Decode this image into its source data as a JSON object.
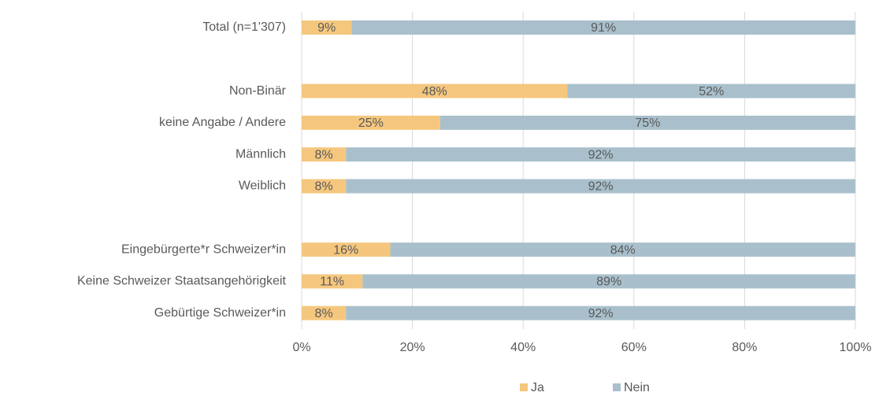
{
  "chart_data": {
    "type": "bar",
    "orientation": "horizontal",
    "stacked": true,
    "categories": [
      "Total (n=1'307)",
      null,
      "Non-Binär",
      "keine Angabe / Andere",
      "Männlich",
      "Weiblich",
      null,
      "Eingebürgerte*r Schweizer*in",
      "Keine Schweizer Staatsangehörigkeit",
      "Gebürtige Schweizer*in"
    ],
    "series": [
      {
        "name": "Ja",
        "color": "#f5c77e",
        "values": [
          9,
          null,
          48,
          25,
          8,
          8,
          null,
          16,
          11,
          8
        ],
        "value_labels": [
          "9%",
          null,
          "48%",
          "25%",
          "8%",
          "8%",
          null,
          "16%",
          "11%",
          "8%"
        ]
      },
      {
        "name": "Nein",
        "color": "#a9c0cc",
        "values": [
          91,
          null,
          52,
          75,
          92,
          92,
          null,
          84,
          89,
          92
        ],
        "value_labels": [
          "91%",
          null,
          "52%",
          "75%",
          "92%",
          "92%",
          null,
          "84%",
          "89%",
          "92%"
        ]
      }
    ],
    "xlim": [
      0,
      100
    ],
    "xticks": [
      {
        "value": 0,
        "label": "0%"
      },
      {
        "value": 20,
        "label": "20%"
      },
      {
        "value": 40,
        "label": "40%"
      },
      {
        "value": 60,
        "label": "60%"
      },
      {
        "value": 80,
        "label": "80%"
      },
      {
        "value": 100,
        "label": "100%"
      }
    ],
    "grid": true,
    "legend": "bottom"
  }
}
